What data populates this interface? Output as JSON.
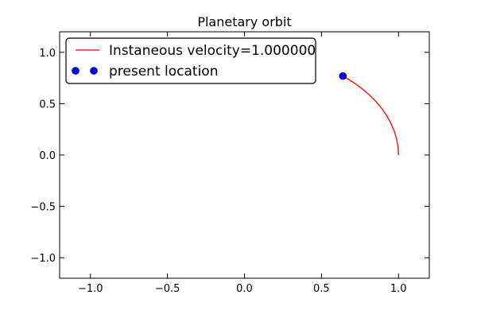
{
  "chart_data": {
    "type": "line",
    "title": "Planetary orbit",
    "xlabel": "",
    "ylabel": "",
    "xlim": [
      -1.2,
      1.2
    ],
    "ylim": [
      -1.2,
      1.2
    ],
    "x_ticks": [
      -1.0,
      -0.5,
      0.0,
      0.5,
      1.0
    ],
    "x_tick_labels": [
      "−1.0",
      "−0.5",
      "0.0",
      "0.5",
      "1.0"
    ],
    "y_ticks": [
      1.0,
      0.5,
      0.0,
      -0.5,
      -1.0
    ],
    "y_tick_labels": [
      "1.0",
      "0.5",
      "0.0",
      "−0.5",
      "−1.0"
    ],
    "grid": false,
    "legend_position": "top-left",
    "series": [
      {
        "name": "Instaneous velocity=1.000000",
        "type": "line",
        "color": "#ff0000",
        "x": [
          1.0,
          0.9968,
          0.9876,
          0.9724,
          0.9515,
          0.9249,
          0.893,
          0.8561,
          0.8145,
          0.7685,
          0.7185,
          0.6651,
          0.639
        ],
        "y": [
          0.0,
          0.08,
          0.157,
          0.2334,
          0.3076,
          0.3801,
          0.45,
          0.5168,
          0.5802,
          0.6398,
          0.6955,
          0.7469,
          0.7693
        ]
      },
      {
        "name": "present location",
        "type": "scatter",
        "color": "#0000ff",
        "x": [
          0.639
        ],
        "y": [
          0.7693
        ]
      }
    ]
  }
}
